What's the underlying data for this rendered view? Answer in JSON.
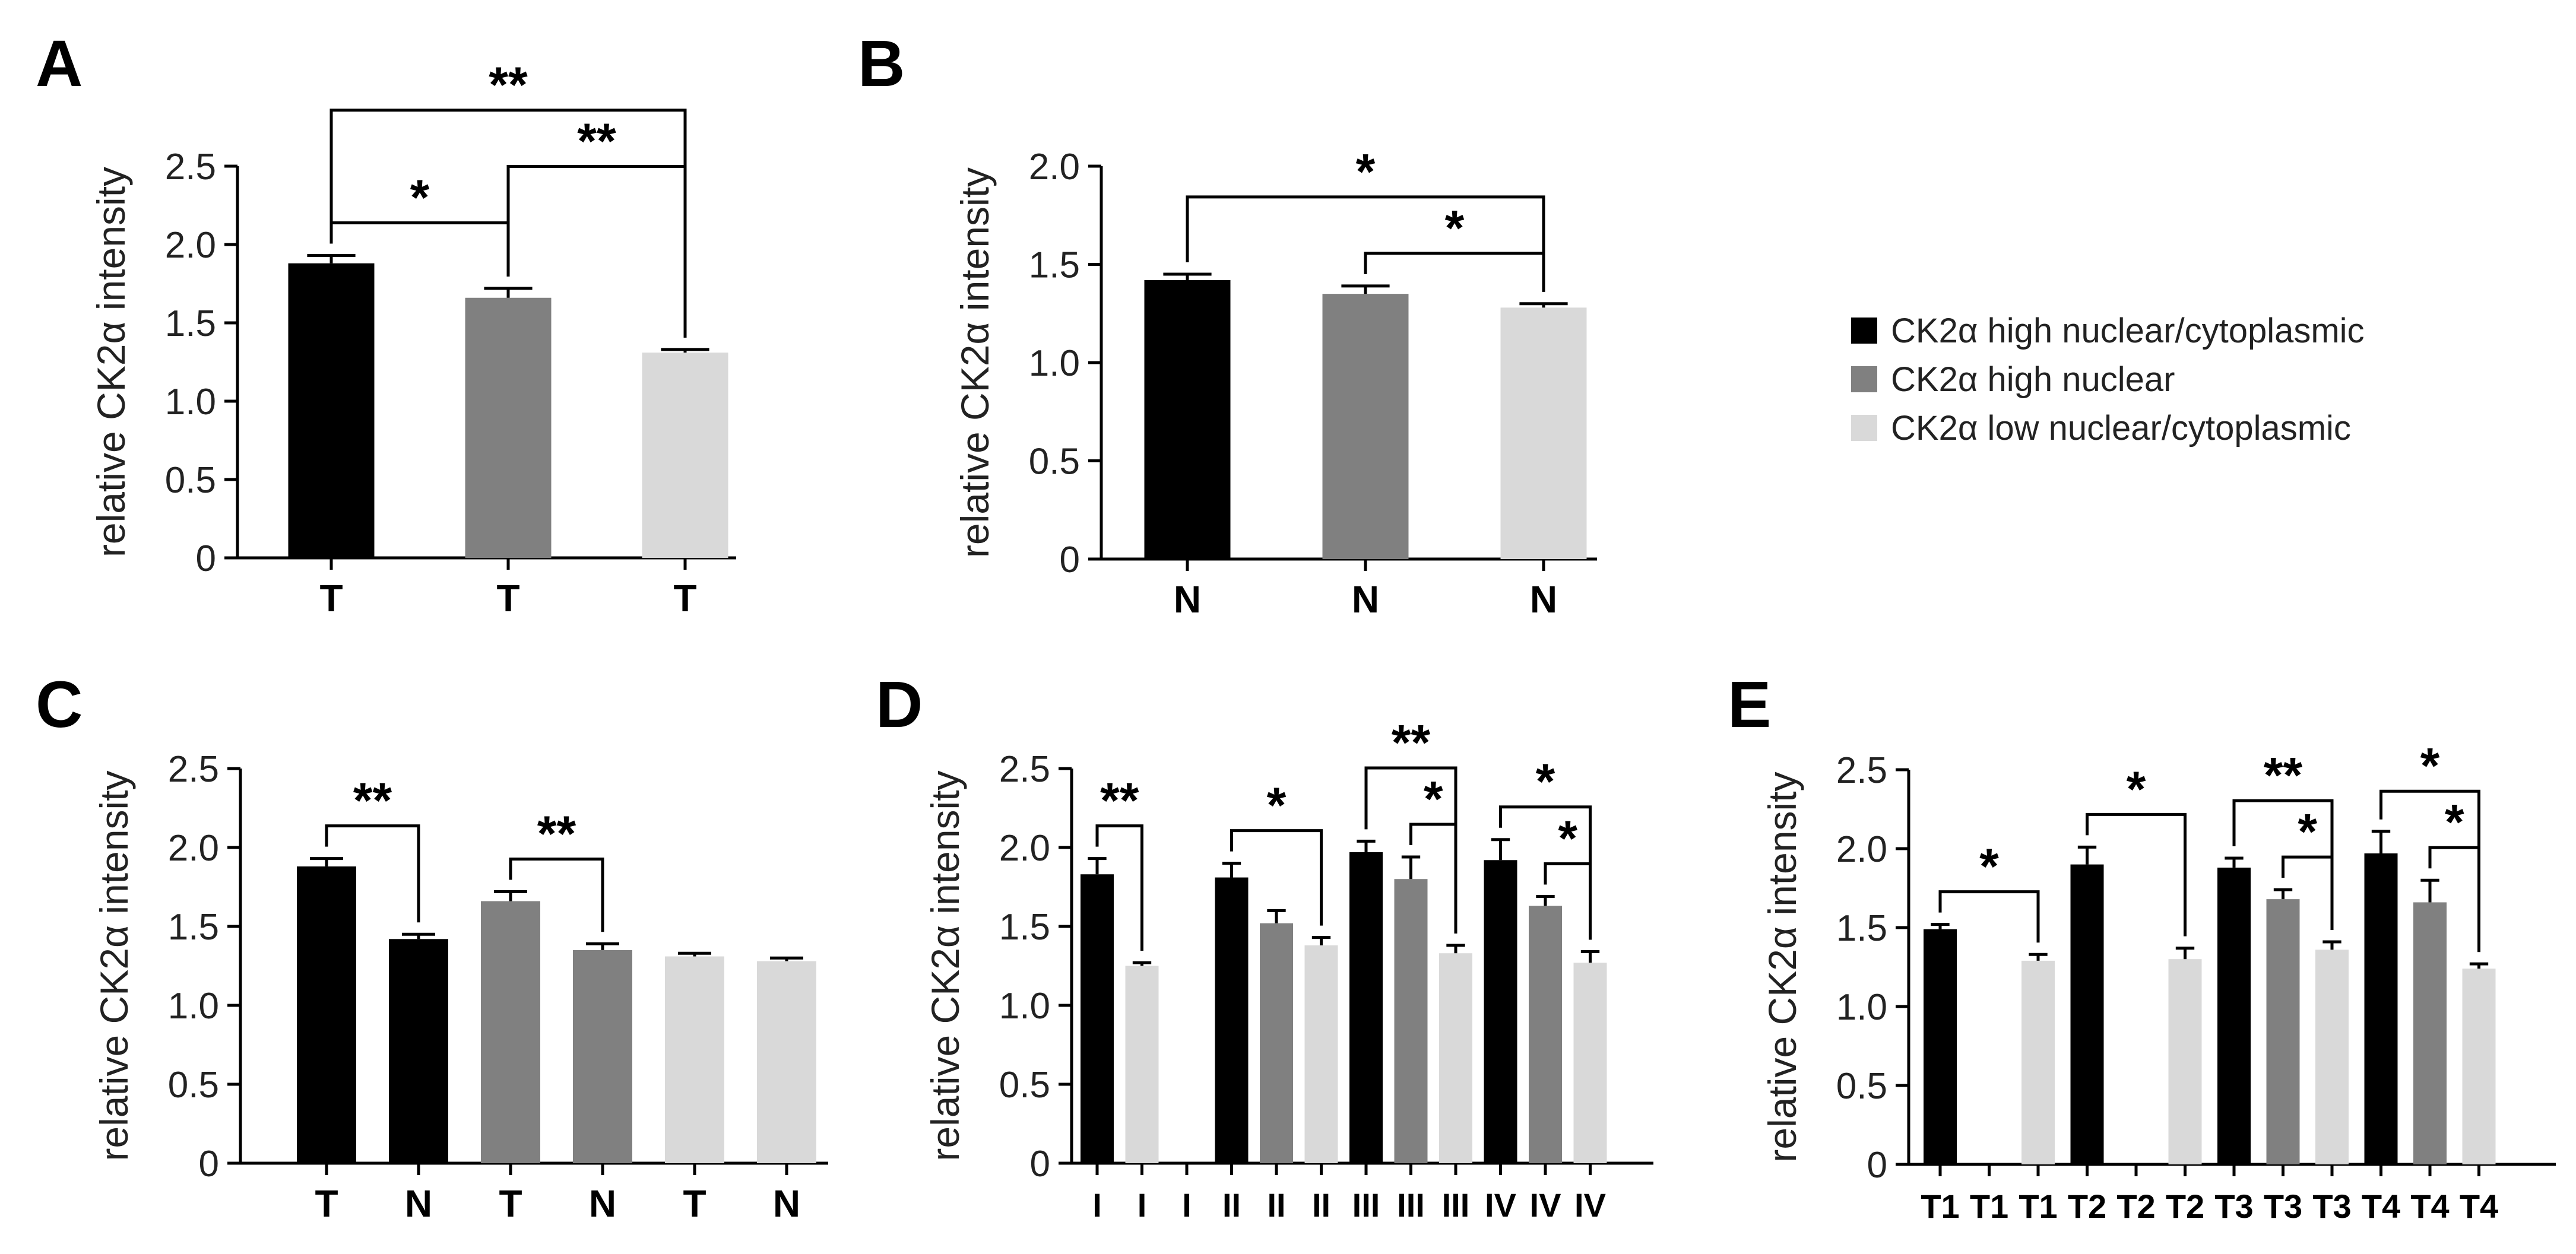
{
  "colors": {
    "high_nc": "#000000",
    "high_n": "#808080",
    "low_nc": "#d9d9d9",
    "axis": "#000000"
  },
  "legend": {
    "entries": [
      {
        "label": "CK2α high nuclear/cytoplasmic",
        "color": "#000000"
      },
      {
        "label": "CK2α high nuclear",
        "color": "#808080"
      },
      {
        "label": "CK2α low nuclear/cytoplasmic",
        "color": "#d9d9d9"
      }
    ]
  },
  "chart_data": [
    {
      "panel": "A",
      "type": "bar",
      "ylabel": "relative CK2α intensity",
      "ylim": [
        0,
        2.5
      ],
      "yticks": [
        "0",
        "0.5",
        "1.0",
        "1.5",
        "2.0",
        "2.5"
      ],
      "categories": [
        "T",
        "T",
        "T"
      ],
      "values": [
        1.88,
        1.66,
        1.31
      ],
      "errors": [
        0.05,
        0.06,
        0.02
      ],
      "groups": [
        "high_nc",
        "high_n",
        "low_nc"
      ],
      "significance": [
        {
          "from": 0,
          "to": 1,
          "label": "*"
        },
        {
          "from": 1,
          "to": 2,
          "label": "**"
        },
        {
          "from": 0,
          "to": 2,
          "label": "**"
        }
      ]
    },
    {
      "panel": "B",
      "type": "bar",
      "ylabel": "relative CK2α intensity",
      "ylim": [
        0,
        2.0
      ],
      "yticks": [
        "0",
        "0.5",
        "1.0",
        "1.5",
        "2.0"
      ],
      "categories": [
        "N",
        "N",
        "N"
      ],
      "values": [
        1.42,
        1.35,
        1.28
      ],
      "errors": [
        0.03,
        0.04,
        0.02
      ],
      "groups": [
        "high_nc",
        "high_n",
        "low_nc"
      ],
      "significance": [
        {
          "from": 1,
          "to": 2,
          "label": "*"
        },
        {
          "from": 0,
          "to": 2,
          "label": "*"
        }
      ]
    },
    {
      "panel": "C",
      "type": "bar",
      "ylabel": "relative CK2α intensity",
      "ylim": [
        0,
        2.5
      ],
      "yticks": [
        "0",
        "0.5",
        "1.0",
        "1.5",
        "2.0",
        "2.5"
      ],
      "categories": [
        "T",
        "N",
        "T",
        "N",
        "T",
        "N"
      ],
      "values": [
        1.88,
        1.42,
        1.66,
        1.35,
        1.31,
        1.28
      ],
      "errors": [
        0.05,
        0.03,
        0.06,
        0.04,
        0.02,
        0.02
      ],
      "groups": [
        "high_nc",
        "high_nc",
        "high_n",
        "high_n",
        "low_nc",
        "low_nc"
      ],
      "significance": [
        {
          "from": 0,
          "to": 1,
          "label": "**"
        },
        {
          "from": 2,
          "to": 3,
          "label": "**"
        }
      ]
    },
    {
      "panel": "D",
      "type": "bar",
      "ylabel": "relative CK2α intensity",
      "ylim": [
        0,
        2.5
      ],
      "yticks": [
        "0",
        "0.5",
        "1.0",
        "1.5",
        "2.0",
        "2.5"
      ],
      "categories": [
        "I",
        "I",
        "I",
        "II",
        "II",
        "II",
        "III",
        "III",
        "III",
        "IV",
        "IV",
        "IV"
      ],
      "values": [
        1.83,
        1.25,
        null,
        1.81,
        1.52,
        1.38,
        1.97,
        1.8,
        1.33,
        1.92,
        1.63,
        1.27
      ],
      "errors": [
        0.1,
        0.02,
        null,
        0.09,
        0.08,
        0.05,
        0.07,
        0.14,
        0.05,
        0.13,
        0.06,
        0.07
      ],
      "groups": [
        "high_nc",
        "low_nc",
        "high_n",
        "high_nc",
        "high_n",
        "low_nc",
        "high_nc",
        "high_n",
        "low_nc",
        "high_nc",
        "high_n",
        "low_nc"
      ],
      "significance": [
        {
          "from": 0,
          "to": 1,
          "label": "**"
        },
        {
          "from": 3,
          "to": 5,
          "label": "*"
        },
        {
          "from": 7,
          "to": 8,
          "label": "*"
        },
        {
          "from": 6,
          "to": 8,
          "label": "**"
        },
        {
          "from": 10,
          "to": 11,
          "label": "*"
        },
        {
          "from": 9,
          "to": 11,
          "label": "*"
        }
      ]
    },
    {
      "panel": "E",
      "type": "bar",
      "ylabel": "relative CK2α intensity",
      "ylim": [
        0,
        2.5
      ],
      "yticks": [
        "0",
        "0.5",
        "1.0",
        "1.5",
        "2.0",
        "2.5"
      ],
      "categories": [
        "T1",
        "T1",
        "T1",
        "T2",
        "T2",
        "T2",
        "T3",
        "T3",
        "T3",
        "T4",
        "T4",
        "T4"
      ],
      "values": [
        1.49,
        null,
        1.29,
        1.9,
        null,
        1.3,
        1.88,
        1.68,
        1.36,
        1.97,
        1.66,
        1.24
      ],
      "errors": [
        0.03,
        null,
        0.04,
        0.11,
        null,
        0.07,
        0.06,
        0.06,
        0.05,
        0.14,
        0.14,
        0.03
      ],
      "groups": [
        "high_nc",
        "high_n",
        "low_nc",
        "high_nc",
        "high_n",
        "low_nc",
        "high_nc",
        "high_n",
        "low_nc",
        "high_nc",
        "high_n",
        "low_nc"
      ],
      "significance": [
        {
          "from": 0,
          "to": 2,
          "label": "*"
        },
        {
          "from": 3,
          "to": 5,
          "label": "*"
        },
        {
          "from": 7,
          "to": 8,
          "label": "*"
        },
        {
          "from": 6,
          "to": 8,
          "label": "**"
        },
        {
          "from": 10,
          "to": 11,
          "label": "*"
        },
        {
          "from": 9,
          "to": 11,
          "label": "*"
        }
      ]
    }
  ]
}
